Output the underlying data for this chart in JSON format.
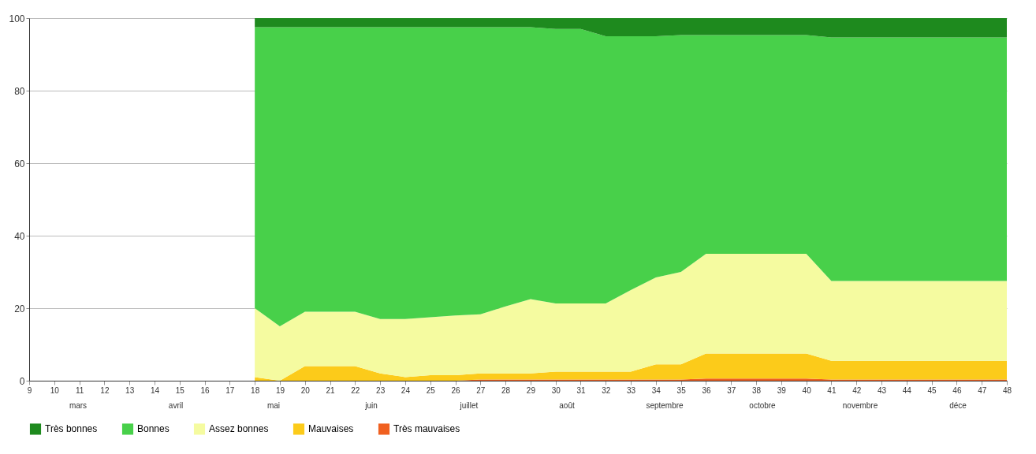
{
  "chart_data": {
    "type": "area",
    "stacked": true,
    "categories": [
      "9",
      "10",
      "11",
      "12",
      "13",
      "14",
      "15",
      "16",
      "17",
      "18",
      "19",
      "20",
      "21",
      "22",
      "23",
      "24",
      "25",
      "26",
      "27",
      "28",
      "29",
      "30",
      "31",
      "32",
      "33",
      "34",
      "35",
      "36",
      "37",
      "38",
      "39",
      "40",
      "41",
      "42",
      "43",
      "44",
      "45",
      "46",
      "47",
      "48"
    ],
    "series": [
      {
        "name": "Très mauvaises",
        "color": "#f06020",
        "values": [
          null,
          null,
          null,
          null,
          null,
          null,
          null,
          null,
          null,
          0,
          0,
          0,
          0,
          0,
          0,
          0,
          0,
          0,
          0.3,
          0.3,
          0.3,
          0.3,
          0.3,
          0.3,
          0.3,
          0.3,
          0.3,
          0.6,
          0.6,
          0.6,
          0.6,
          0.6,
          0.3,
          0.3,
          0.3,
          0.3,
          0.3,
          0.3,
          0.3,
          0.3
        ]
      },
      {
        "name": "Mauvaises",
        "color": "#fccb1a",
        "values": [
          null,
          null,
          null,
          null,
          null,
          null,
          null,
          null,
          null,
          1,
          0,
          4,
          4,
          4,
          2,
          1,
          1.5,
          1.5,
          1.7,
          1.7,
          1.7,
          2.2,
          2.2,
          2.2,
          2.2,
          4.2,
          4.2,
          6.9,
          6.9,
          6.9,
          6.9,
          6.9,
          5.2,
          5.2,
          5.2,
          5.2,
          5.2,
          5.2,
          5.2,
          5.2
        ]
      },
      {
        "name": "Assez bonnes",
        "color": "#f5fba0",
        "values": [
          null,
          null,
          null,
          null,
          null,
          null,
          null,
          null,
          null,
          19,
          15,
          15,
          15,
          15,
          15,
          16,
          16,
          16.5,
          16.3,
          18.5,
          20.5,
          18.8,
          18.8,
          18.8,
          22.5,
          24,
          25.5,
          27.5,
          27.5,
          27.5,
          27.5,
          27.5,
          22,
          22,
          22,
          22,
          22,
          22,
          22,
          22
        ]
      },
      {
        "name": "Bonnes",
        "color": "#48d04a",
        "values": [
          null,
          null,
          null,
          null,
          null,
          null,
          null,
          null,
          null,
          77.5,
          82.5,
          78.5,
          78.5,
          78.5,
          80.5,
          80.5,
          80,
          79.5,
          79.2,
          77,
          75,
          75.7,
          75.7,
          73.7,
          70,
          66.5,
          65.3,
          60.3,
          60.3,
          60.3,
          60.3,
          60.3,
          67.2,
          67.2,
          67.2,
          67.2,
          67.2,
          67.2,
          67.2,
          67.2
        ]
      },
      {
        "name": "Très bonnes",
        "color": "#1e8a1e",
        "values": [
          null,
          null,
          null,
          null,
          null,
          null,
          null,
          null,
          null,
          2.5,
          2.5,
          2.5,
          2.5,
          2.5,
          2.5,
          2.5,
          2.5,
          2.5,
          2.5,
          2.5,
          2.5,
          3,
          3,
          5,
          5,
          5,
          4.7,
          4.7,
          4.7,
          4.7,
          4.7,
          4.7,
          5.3,
          5.3,
          5.3,
          5.3,
          5.3,
          5.3,
          5.3,
          5.3
        ]
      }
    ],
    "ylim": [
      0,
      100
    ],
    "yticks": [
      0,
      20,
      40,
      60,
      80,
      100
    ],
    "grid": "y",
    "legend": "bottom",
    "annotations": [
      "mars",
      "avril",
      "mai",
      "juin",
      "juillet",
      "août",
      "septembre",
      "octobre",
      "novembre",
      "déce"
    ]
  }
}
